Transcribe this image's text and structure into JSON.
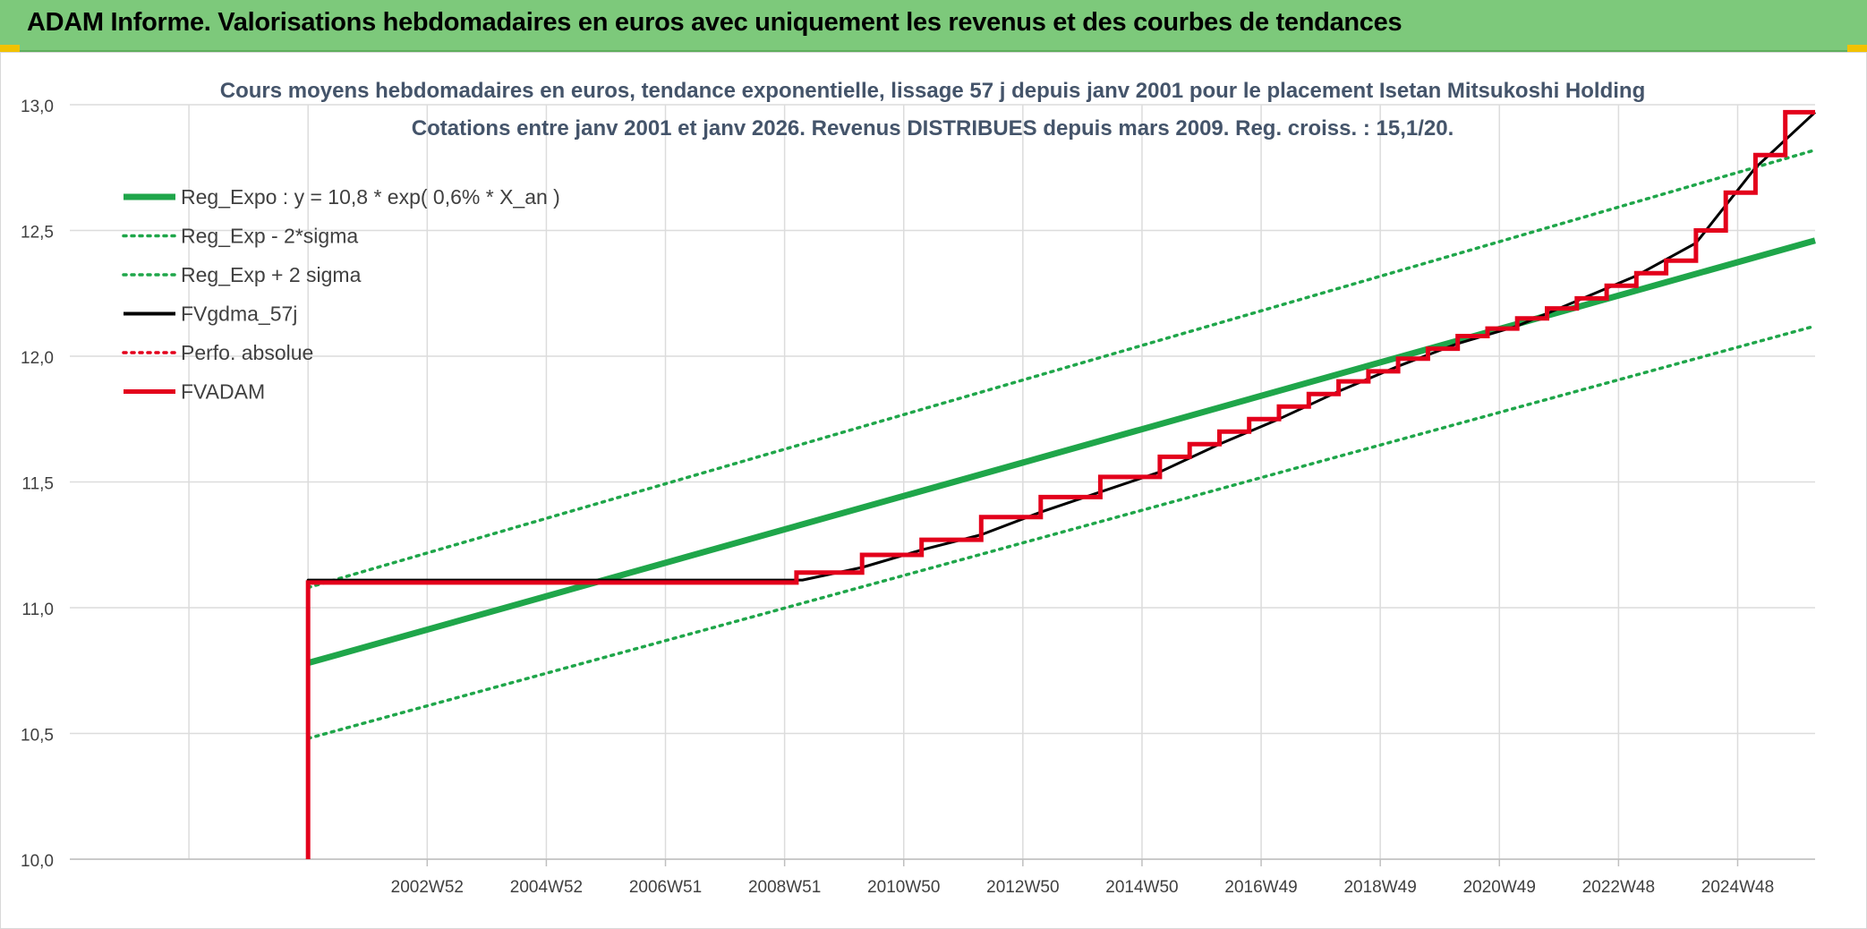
{
  "header": {
    "title": "ADAM Informe. Valorisations hebdomadaires en euros avec uniquement les revenus et des courbes de tendances"
  },
  "colors": {
    "header_bg": "#7dc97b",
    "reg_expo": "#1fa64a",
    "sigma": "#1fa64a",
    "fvgdma": "#000000",
    "perfo": "#e3001b",
    "fvadam": "#e3001b",
    "grid": "#dcdcdc"
  },
  "chart_data": {
    "type": "line",
    "title": "Cours moyens hebdomadaires en euros, tendance exponentielle, lissage 57 j depuis janv 2001 pour le placement Isetan Mitsukoshi Holding",
    "subtitle": "Cotations entre janv 2001 et janv 2026. Revenus DISTRIBUES depuis mars 2009. Reg. croiss. : 15,1/20.",
    "xlabel": "",
    "ylabel": "",
    "ylim": [
      10.0,
      13.0
    ],
    "xlim": [
      1997.0,
      2026.3
    ],
    "y_ticks": [
      "10,0",
      "10,5",
      "11,0",
      "11,5",
      "12,0",
      "12,5",
      "13,0"
    ],
    "x_ticks": [
      {
        "label": "2002W52",
        "x": 2003.0
      },
      {
        "label": "2004W52",
        "x": 2005.0
      },
      {
        "label": "2006W51",
        "x": 2007.0
      },
      {
        "label": "2008W51",
        "x": 2009.0
      },
      {
        "label": "2010W50",
        "x": 2011.0
      },
      {
        "label": "2012W50",
        "x": 2013.0
      },
      {
        "label": "2014W50",
        "x": 2015.0
      },
      {
        "label": "2016W49",
        "x": 2017.0
      },
      {
        "label": "2018W49",
        "x": 2019.0
      },
      {
        "label": "2020W49",
        "x": 2021.0
      },
      {
        "label": "2022W48",
        "x": 2023.0
      },
      {
        "label": "2024W48",
        "x": 2025.0
      }
    ],
    "grid": true,
    "legend_position": "top-left",
    "series": [
      {
        "name": "Reg_Expo : y = 10,8 * exp( 0,6% *  X_an )",
        "style": "thick-solid",
        "color": "#1fa64a",
        "x": [
          2001.0,
          2026.3
        ],
        "y": [
          10.78,
          12.46
        ]
      },
      {
        "name": "Reg_Exp - 2*sigma",
        "style": "dotted",
        "color": "#1fa64a",
        "x": [
          2001.0,
          2026.3
        ],
        "y": [
          10.48,
          12.12
        ]
      },
      {
        "name": "Reg_Exp + 2 sigma",
        "style": "dotted",
        "color": "#1fa64a",
        "x": [
          2001.0,
          2026.3
        ],
        "y": [
          11.08,
          12.82
        ]
      },
      {
        "name": "FVgdma_57j",
        "style": "solid",
        "color": "#000000",
        "x": [
          2001.0,
          2001.0,
          2009.3,
          2010.3,
          2011.3,
          2012.3,
          2013.3,
          2014.3,
          2015.3,
          2016.3,
          2017.3,
          2018.3,
          2019.3,
          2020.3,
          2021.3,
          2022.3,
          2023.3,
          2024.3,
          2025.3,
          2026.3
        ],
        "y": [
          10.0,
          11.11,
          11.11,
          11.16,
          11.23,
          11.29,
          11.38,
          11.46,
          11.54,
          11.65,
          11.75,
          11.86,
          11.96,
          12.05,
          12.12,
          12.22,
          12.32,
          12.45,
          12.75,
          12.97
        ]
      },
      {
        "name": "Perfo. absolue",
        "style": "dotted",
        "color": "#e3001b",
        "x": [],
        "y": []
      },
      {
        "name": "FVADAM",
        "style": "thick-step",
        "color": "#e3001b",
        "x": [
          2001.0,
          2001.0,
          2009.2,
          2009.2,
          2010.3,
          2010.3,
          2011.3,
          2011.3,
          2012.3,
          2012.3,
          2013.3,
          2013.3,
          2014.3,
          2014.3,
          2015.3,
          2015.3,
          2015.8,
          2015.8,
          2016.3,
          2016.3,
          2016.8,
          2016.8,
          2017.3,
          2017.3,
          2017.8,
          2017.8,
          2018.3,
          2018.3,
          2018.8,
          2018.8,
          2019.3,
          2019.3,
          2019.8,
          2019.8,
          2020.3,
          2020.3,
          2020.8,
          2020.8,
          2021.3,
          2021.3,
          2021.8,
          2021.8,
          2022.3,
          2022.3,
          2022.8,
          2022.8,
          2023.3,
          2023.3,
          2023.8,
          2023.8,
          2024.3,
          2024.3,
          2024.8,
          2024.8,
          2025.3,
          2025.3,
          2025.8,
          2025.8,
          2026.3
        ],
        "y": [
          10.0,
          11.1,
          11.1,
          11.14,
          11.14,
          11.21,
          11.21,
          11.27,
          11.27,
          11.36,
          11.36,
          11.44,
          11.44,
          11.52,
          11.52,
          11.6,
          11.6,
          11.65,
          11.65,
          11.7,
          11.7,
          11.75,
          11.75,
          11.8,
          11.8,
          11.85,
          11.85,
          11.9,
          11.9,
          11.94,
          11.94,
          11.99,
          11.99,
          12.03,
          12.03,
          12.08,
          12.08,
          12.11,
          12.11,
          12.15,
          12.15,
          12.19,
          12.19,
          12.23,
          12.23,
          12.28,
          12.28,
          12.33,
          12.33,
          12.38,
          12.38,
          12.5,
          12.5,
          12.65,
          12.65,
          12.8,
          12.8,
          12.97,
          12.97
        ]
      }
    ]
  }
}
